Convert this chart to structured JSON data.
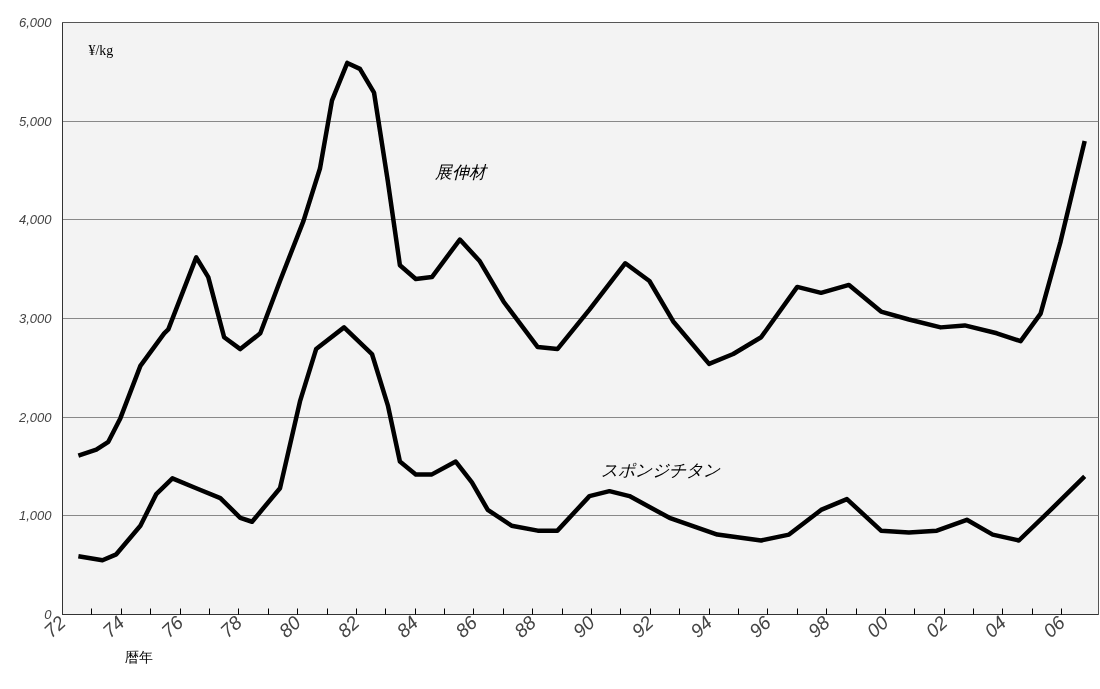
{
  "chart_data": {
    "type": "line",
    "ylabel": "¥/kg",
    "xlabel": "暦年",
    "xlim": [
      1972,
      2007.25
    ],
    "ylim": [
      0,
      6000
    ],
    "xticks": [
      {
        "value": 1972,
        "label": "72"
      },
      {
        "value": 1973,
        "label": null
      },
      {
        "value": 1974,
        "label": "74"
      },
      {
        "value": 1975,
        "label": null
      },
      {
        "value": 1976,
        "label": "76"
      },
      {
        "value": 1977,
        "label": null
      },
      {
        "value": 1978,
        "label": "78"
      },
      {
        "value": 1979,
        "label": null
      },
      {
        "value": 1980,
        "label": "80"
      },
      {
        "value": 1981,
        "label": null
      },
      {
        "value": 1982,
        "label": "82"
      },
      {
        "value": 1983,
        "label": null
      },
      {
        "value": 1984,
        "label": "84"
      },
      {
        "value": 1985,
        "label": null
      },
      {
        "value": 1986,
        "label": "86"
      },
      {
        "value": 1987,
        "label": null
      },
      {
        "value": 1988,
        "label": "88"
      },
      {
        "value": 1989,
        "label": null
      },
      {
        "value": 1990,
        "label": "90"
      },
      {
        "value": 1991,
        "label": null
      },
      {
        "value": 1992,
        "label": "92"
      },
      {
        "value": 1993,
        "label": null
      },
      {
        "value": 1994,
        "label": "94"
      },
      {
        "value": 1995,
        "label": null
      },
      {
        "value": 1996,
        "label": "96"
      },
      {
        "value": 1997,
        "label": null
      },
      {
        "value": 1998,
        "label": "98"
      },
      {
        "value": 1999,
        "label": null
      },
      {
        "value": 2000,
        "label": "00"
      },
      {
        "value": 2001,
        "label": null
      },
      {
        "value": 2002,
        "label": "02"
      },
      {
        "value": 2003,
        "label": null
      },
      {
        "value": 2004,
        "label": "04"
      },
      {
        "value": 2005,
        "label": null
      },
      {
        "value": 2006,
        "label": "06"
      }
    ],
    "yticks": [
      {
        "value": 0,
        "label": "0"
      },
      {
        "value": 1000,
        "label": "1,000"
      },
      {
        "value": 2000,
        "label": "2,000"
      },
      {
        "value": 3000,
        "label": "3,000"
      },
      {
        "value": 4000,
        "label": "4,000"
      },
      {
        "value": 5000,
        "label": "5,000"
      },
      {
        "value": 6000,
        "label": "6,000"
      }
    ],
    "grid": "y",
    "marker": "none",
    "line_style": "solid",
    "series": [
      {
        "name": "展伸材",
        "color": "#000000",
        "x": [
          1972.54,
          1973.15,
          1973.56,
          1973.97,
          1974.65,
          1975.46,
          1975.6,
          1976.55,
          1976.96,
          1977.5,
          1978.05,
          1978.73,
          1979.4,
          1980.2,
          1980.76,
          1981.17,
          1981.69,
          1982.12,
          1982.6,
          1983.07,
          1983.48,
          1984.02,
          1984.57,
          1985.52,
          1986.2,
          1987.01,
          1988.17,
          1988.84,
          1989.93,
          1991.15,
          1991.97,
          1992.78,
          1994.0,
          1994.82,
          1995.77,
          1997.0,
          1997.81,
          1998.76,
          1999.85,
          2000.8,
          2001.88,
          2002.7,
          2003.79,
          2004.6,
          2005.28,
          2005.96,
          2006.78
        ],
        "values": [
          1610,
          1670,
          1750,
          1990,
          2520,
          2850,
          2890,
          3620,
          3420,
          2810,
          2690,
          2850,
          3380,
          3990,
          4520,
          5210,
          5590,
          5530,
          5290,
          4390,
          3540,
          3400,
          3420,
          3800,
          3580,
          3170,
          2710,
          2690,
          3090,
          3560,
          3380,
          2970,
          2540,
          2640,
          2810,
          3320,
          3260,
          3340,
          3070,
          2990,
          2910,
          2930,
          2850,
          2770,
          3050,
          3780,
          4800
        ]
      },
      {
        "name": "スポンジチタン",
        "color": "#000000",
        "x": [
          1972.54,
          1973.36,
          1973.83,
          1974.65,
          1975.19,
          1975.74,
          1976.55,
          1977.37,
          1978.05,
          1978.45,
          1979.4,
          1980.08,
          1980.63,
          1981.58,
          1982.53,
          1983.07,
          1983.48,
          1984.02,
          1984.57,
          1985.38,
          1985.93,
          1986.47,
          1987.28,
          1988.17,
          1988.84,
          1989.93,
          1990.61,
          1991.29,
          1992.65,
          1994.28,
          1995.77,
          1996.72,
          1997.81,
          1998.69,
          1999.85,
          2000.8,
          2001.75,
          2002.77,
          2003.65,
          2004.54,
          2005.83,
          2006.78
        ],
        "values": [
          590,
          550,
          610,
          900,
          1220,
          1380,
          1280,
          1180,
          980,
          940,
          1280,
          2160,
          2690,
          2910,
          2640,
          2120,
          1550,
          1420,
          1420,
          1550,
          1340,
          1060,
          900,
          850,
          850,
          1200,
          1250,
          1200,
          980,
          810,
          750,
          810,
          1060,
          1170,
          850,
          830,
          850,
          960,
          810,
          750,
          1120,
          1400
        ]
      }
    ]
  }
}
